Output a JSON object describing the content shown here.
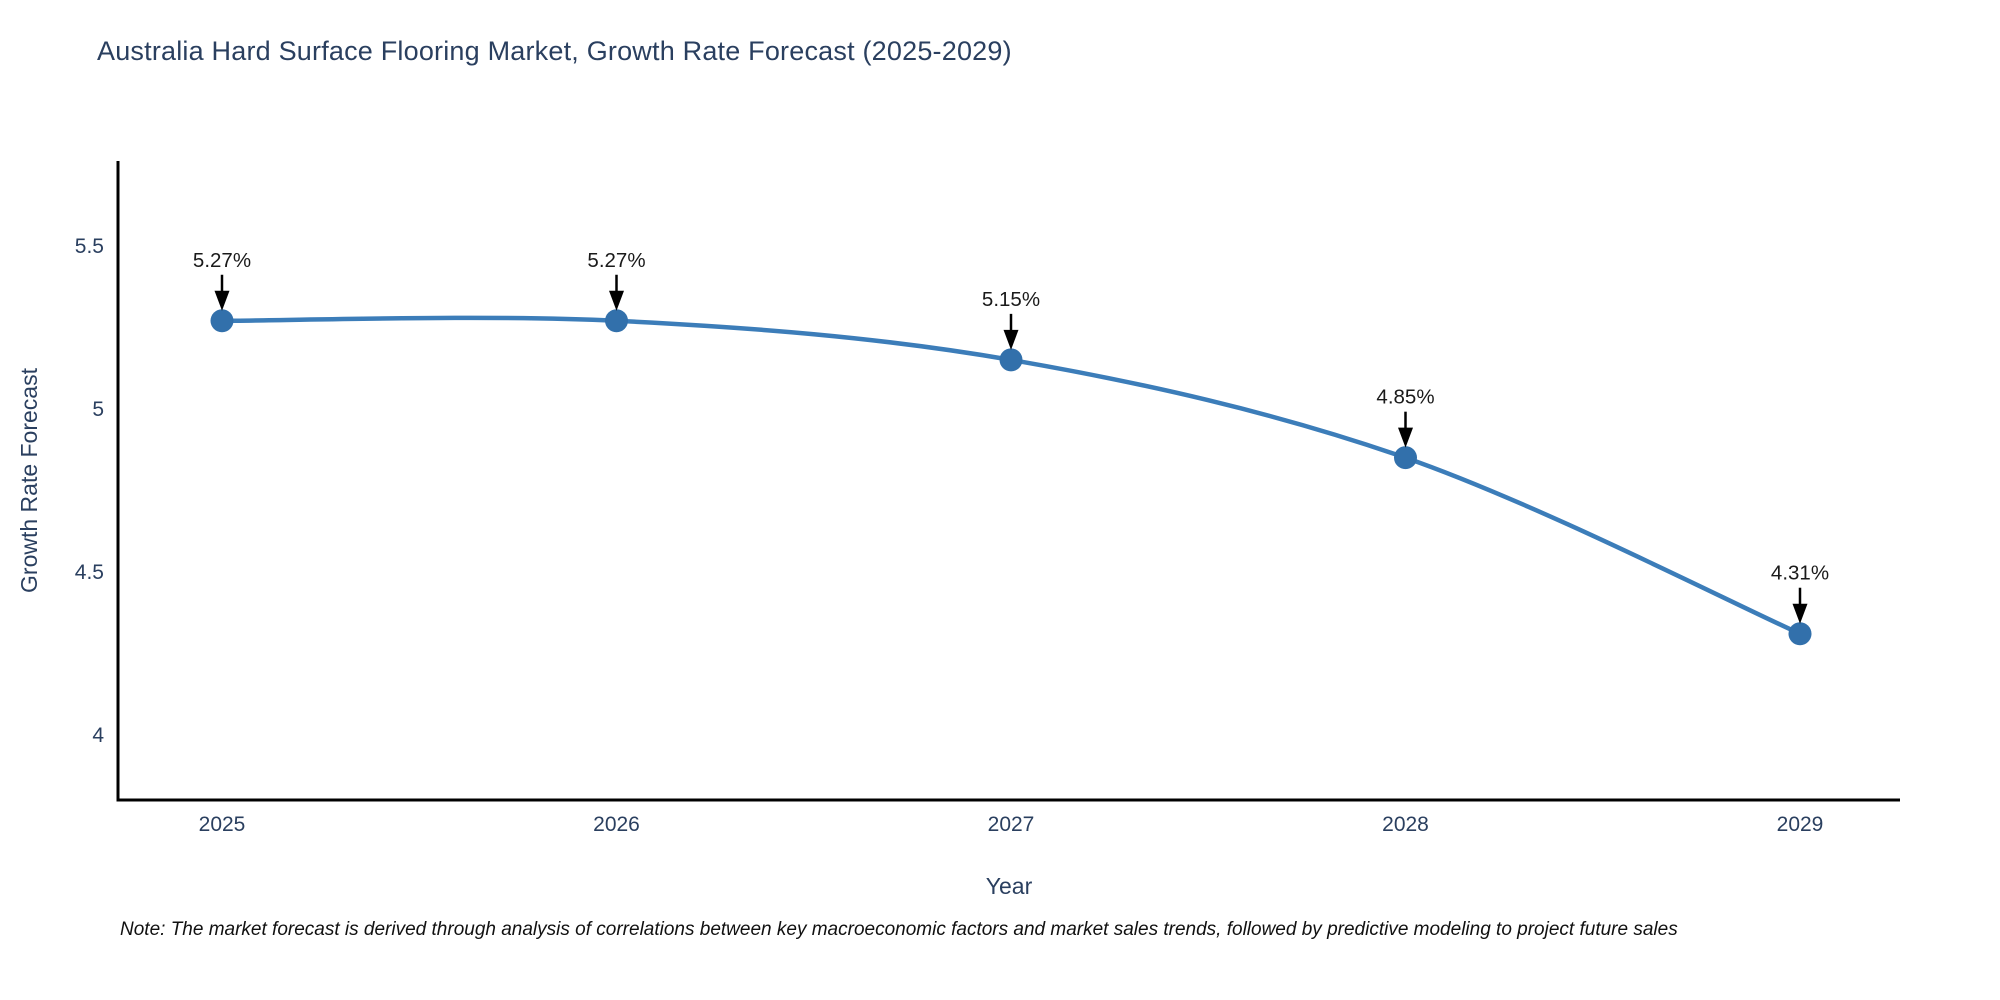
{
  "chart": {
    "title": "Australia Hard Surface Flooring Market, Growth Rate Forecast (2025-2029)"
  },
  "chart_data": {
    "type": "line",
    "line_shape": "spline",
    "title": "Australia Hard Surface Flooring Market, Growth Rate Forecast (2025-2029)",
    "categories": [
      "2025",
      "2026",
      "2027",
      "2028",
      "2029"
    ],
    "values": [
      5.27,
      5.27,
      5.15,
      4.85,
      4.31
    ],
    "point_labels": [
      "5.27%",
      "5.27%",
      "5.15%",
      "4.85%",
      "4.31%"
    ],
    "xlabel": "Year",
    "ylabel": "Growth Rate Forecast",
    "yticks": [
      4,
      4.5,
      5,
      5.5
    ],
    "ytick_labels": [
      "4",
      "4.5",
      "5",
      "5.5"
    ],
    "ylim": [
      3.8,
      5.76
    ],
    "grid": false,
    "legend": "none",
    "annotations_have_arrows": true,
    "colors": {
      "line": "#3c7db9",
      "marker": "#3270ab",
      "axis_line": "#000000",
      "tick_text": "#2a3f5f",
      "axis_title_text": "#2a3f5f",
      "annotation_text": "#1a1a1a",
      "arrow": "#000000",
      "background": "#ffffff"
    }
  },
  "note": {
    "text": "Note: The market forecast is derived through analysis of correlations between key macroeconomic factors and market sales trends, followed by predictive modeling to project future sales"
  }
}
